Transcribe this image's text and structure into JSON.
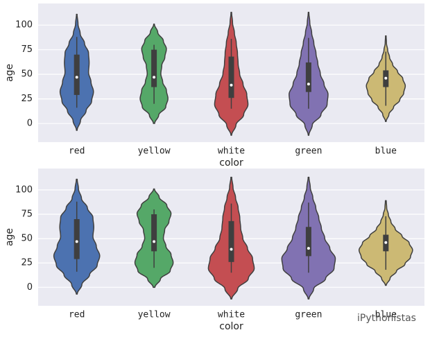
{
  "chart_data": [
    {
      "type": "violin",
      "xlabel": "color",
      "ylabel": "age",
      "categories": [
        "red",
        "yellow",
        "white",
        "green",
        "blue"
      ],
      "colors": [
        "#4c72b0",
        "#55a868",
        "#c44e52",
        "#8172b2",
        "#ccb974"
      ],
      "ylim": [
        -19,
        122
      ],
      "yticks": [
        0,
        25,
        50,
        75,
        100
      ],
      "grid": true,
      "violins": [
        {
          "extent": [
            -7,
            111
          ],
          "q1": 29,
          "median": 47,
          "q3": 70,
          "whiskers": [
            16,
            88
          ],
          "density": [
            0.01,
            0.12,
            0.3,
            0.48,
            0.54,
            0.46,
            0.38,
            0.4,
            0.38,
            0.25,
            0.11,
            0.04,
            0.01
          ]
        },
        {
          "extent": [
            0,
            101
          ],
          "q1": 37,
          "median": 47,
          "q3": 75,
          "whiskers": [
            20,
            80
          ],
          "density": [
            0.02,
            0.15,
            0.38,
            0.45,
            0.4,
            0.28,
            0.22,
            0.25,
            0.35,
            0.4,
            0.3,
            0.12,
            0.01
          ]
        },
        {
          "extent": [
            -12,
            113
          ],
          "q1": 26,
          "median": 39,
          "q3": 68,
          "whiskers": [
            15,
            86
          ],
          "density": [
            0.01,
            0.15,
            0.4,
            0.54,
            0.5,
            0.38,
            0.27,
            0.22,
            0.2,
            0.16,
            0.1,
            0.04,
            0.01
          ]
        },
        {
          "extent": [
            -12,
            113
          ],
          "q1": 32,
          "median": 40,
          "q3": 62,
          "whiskers": [
            15,
            87
          ],
          "density": [
            0.01,
            0.12,
            0.4,
            0.6,
            0.63,
            0.5,
            0.38,
            0.3,
            0.24,
            0.17,
            0.1,
            0.04,
            0.01
          ]
        },
        {
          "extent": [
            2,
            89
          ],
          "q1": 37,
          "median": 46,
          "q3": 54,
          "whiskers": [
            18,
            73
          ],
          "density": [
            0.01,
            0.1,
            0.25,
            0.45,
            0.58,
            0.63,
            0.55,
            0.38,
            0.22,
            0.12,
            0.06,
            0.02,
            0.01
          ]
        }
      ]
    },
    {
      "type": "violin",
      "xlabel": "color",
      "ylabel": "age",
      "categories": [
        "red",
        "yellow",
        "white",
        "green",
        "blue"
      ],
      "colors": [
        "#4c72b0",
        "#55a868",
        "#c44e52",
        "#8172b2",
        "#ccb974"
      ],
      "ylim": [
        -19,
        122
      ],
      "yticks": [
        0,
        25,
        50,
        75,
        100
      ],
      "grid": true,
      "violins": [
        {
          "extent": [
            -7,
            111
          ],
          "q1": 29,
          "median": 47,
          "q3": 70,
          "whiskers": [
            16,
            88
          ],
          "density": [
            0.01,
            0.12,
            0.3,
            0.48,
            0.54,
            0.46,
            0.38,
            0.4,
            0.38,
            0.25,
            0.11,
            0.04,
            0.01
          ]
        },
        {
          "extent": [
            0,
            101
          ],
          "q1": 37,
          "median": 47,
          "q3": 75,
          "whiskers": [
            20,
            80
          ],
          "density": [
            0.02,
            0.15,
            0.38,
            0.45,
            0.4,
            0.28,
            0.22,
            0.25,
            0.35,
            0.4,
            0.3,
            0.12,
            0.01
          ]
        },
        {
          "extent": [
            -12,
            113
          ],
          "q1": 26,
          "median": 39,
          "q3": 68,
          "whiskers": [
            15,
            86
          ],
          "density": [
            0.01,
            0.15,
            0.4,
            0.54,
            0.5,
            0.38,
            0.27,
            0.22,
            0.2,
            0.16,
            0.1,
            0.04,
            0.01
          ]
        },
        {
          "extent": [
            -12,
            113
          ],
          "q1": 32,
          "median": 40,
          "q3": 62,
          "whiskers": [
            15,
            87
          ],
          "density": [
            0.01,
            0.12,
            0.4,
            0.6,
            0.63,
            0.5,
            0.38,
            0.3,
            0.24,
            0.17,
            0.1,
            0.04,
            0.01
          ]
        },
        {
          "extent": [
            2,
            89
          ],
          "q1": 37,
          "median": 46,
          "q3": 54,
          "whiskers": [
            18,
            73
          ],
          "density": [
            0.01,
            0.1,
            0.25,
            0.45,
            0.58,
            0.63,
            0.55,
            0.38,
            0.22,
            0.12,
            0.06,
            0.02,
            0.01
          ]
        }
      ]
    }
  ],
  "watermark": "iPythonistas"
}
